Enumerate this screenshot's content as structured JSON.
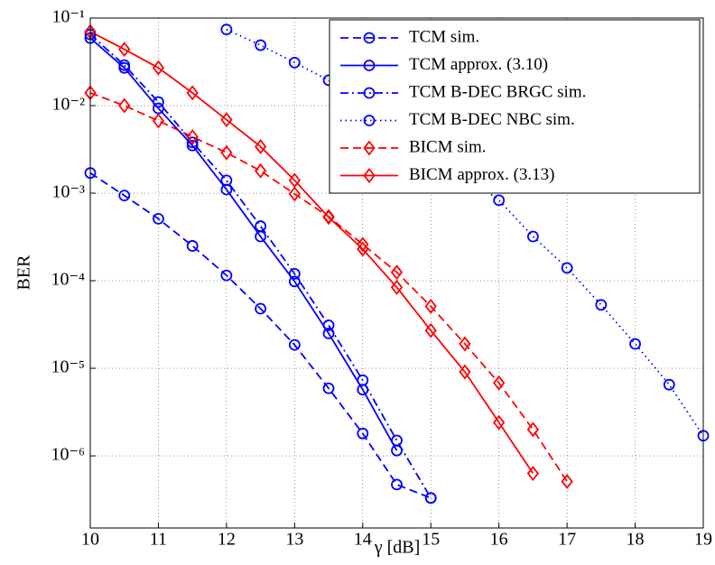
{
  "chart_data": {
    "type": "line",
    "xlabel": "γ [dB]",
    "ylabel": "BER",
    "x": [
      10,
      10.5,
      11,
      11.5,
      12,
      12.5,
      13,
      13.5,
      14,
      14.5,
      15,
      15.5,
      16,
      16.5,
      17,
      17.5,
      18,
      18.5,
      19
    ],
    "series": [
      {
        "name": "TCM sim.",
        "color": "#0000ff",
        "linestyle": "dashed",
        "marker": "circle",
        "values": [
          0.0017,
          0.00094,
          0.00051,
          0.00025,
          0.000115,
          4.8e-05,
          1.85e-05,
          5.9e-06,
          1.8e-06,
          4.7e-07,
          3.3e-07,
          null,
          null,
          null,
          null,
          null,
          null,
          null,
          null
        ]
      },
      {
        "name": "TCM approx. (3.10)",
        "color": "#0000ff",
        "linestyle": "solid",
        "marker": "circle",
        "values": [
          0.059,
          0.027,
          0.0093,
          0.0035,
          0.0011,
          0.00032,
          9.8e-05,
          2.5e-05,
          5.7e-06,
          1.15e-06,
          null,
          null,
          null,
          null,
          null,
          null,
          null,
          null,
          null
        ]
      },
      {
        "name": "TCM B-DEC BRGC sim.",
        "color": "#0000ff",
        "linestyle": "dashdot",
        "marker": "circle",
        "values": [
          0.065,
          0.029,
          0.011,
          0.0038,
          0.0014,
          0.00042,
          0.00012,
          3.1e-05,
          7.3e-06,
          1.5e-06,
          3.3e-07,
          null,
          null,
          null,
          null,
          null,
          null,
          null,
          null
        ]
      },
      {
        "name": "TCM B-DEC NBC sim.",
        "color": "#0000ff",
        "linestyle": "dotted",
        "marker": "circle",
        "values": [
          null,
          null,
          null,
          null,
          0.074,
          0.049,
          0.031,
          0.0195,
          0.011,
          0.0057,
          0.003,
          0.0016,
          0.00083,
          0.00032,
          0.00014,
          5.3e-05,
          1.9e-05,
          6.5e-06,
          1.7e-06
        ]
      },
      {
        "name": "BICM sim.",
        "color": "#ff0000",
        "linestyle": "dashed",
        "marker": "diamond",
        "values": [
          0.014,
          0.01,
          0.0067,
          0.0044,
          0.0029,
          0.0018,
          0.00098,
          0.00054,
          0.00026,
          0.000125,
          5.1e-05,
          1.9e-05,
          6.8e-06,
          2e-06,
          5.1e-07,
          null,
          null,
          null,
          null
        ]
      },
      {
        "name": "BICM approx. (3.13)",
        "color": "#ff0000",
        "linestyle": "solid",
        "marker": "diamond",
        "values": [
          0.07,
          0.044,
          0.027,
          0.014,
          0.0069,
          0.0034,
          0.0014,
          0.00053,
          0.00023,
          8.4e-05,
          2.7e-05,
          9.1e-06,
          2.4e-06,
          6.3e-07,
          null,
          null,
          null,
          null,
          null
        ]
      }
    ],
    "xlim": [
      10,
      19
    ],
    "xticks": [
      10,
      11,
      12,
      13,
      14,
      15,
      16,
      17,
      18,
      19
    ],
    "ylim": [
      1.5e-07,
      0.1
    ],
    "ylog": true,
    "yticks": [
      {
        "value": 0.1,
        "label": "10⁻¹"
      },
      {
        "value": 0.01,
        "label": "10⁻²"
      },
      {
        "value": 0.001,
        "label": "10⁻³"
      },
      {
        "value": 0.0001,
        "label": "10⁻⁴"
      },
      {
        "value": 1e-05,
        "label": "10⁻⁵"
      },
      {
        "value": 1e-06,
        "label": "10⁻⁶"
      }
    ],
    "grid": true,
    "legend_loc": "upper right"
  }
}
